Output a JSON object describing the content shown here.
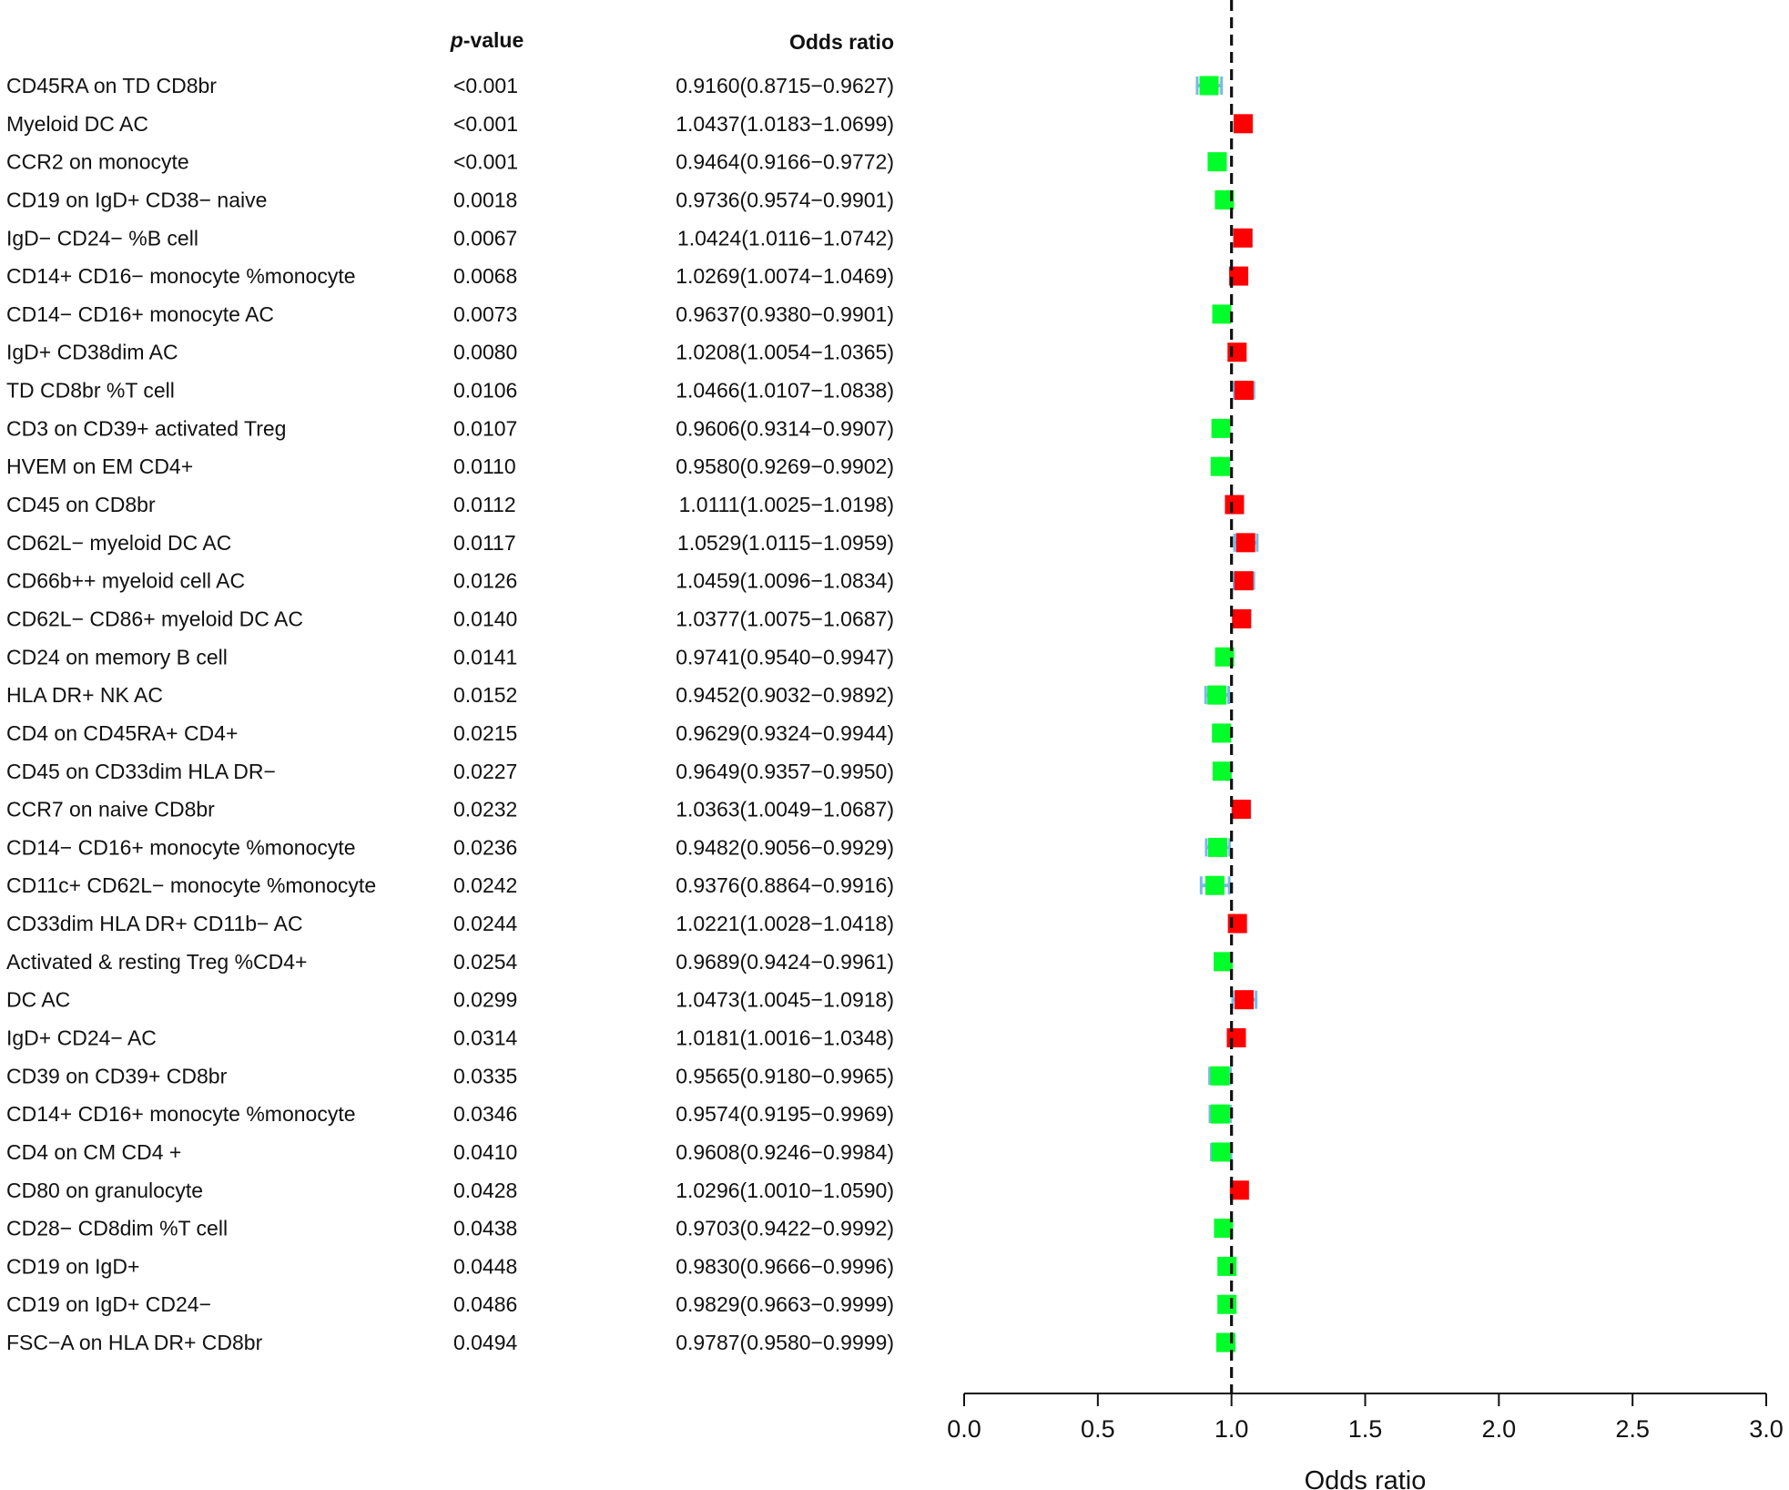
{
  "headers": {
    "pvalue_prefix": "p",
    "pvalue_suffix": "-value",
    "or": "Odds ratio"
  },
  "colors": {
    "protective": "#00ff2a",
    "risk": "#ff0000",
    "ci": "#7cb8e6",
    "refline": "#111111"
  },
  "chart_data": {
    "type": "forest",
    "xlabel": "Odds ratio",
    "xlim": [
      0.0,
      3.0
    ],
    "xticks": [
      "0.0",
      "0.5",
      "1.0",
      "1.5",
      "2.0",
      "2.5",
      "3.0"
    ],
    "reference_line": 1.0,
    "rows": [
      {
        "label": "CD45RA on TD CD8br",
        "p": "<0.001",
        "or": 0.916,
        "lo": 0.8715,
        "hi": 0.9627,
        "or_text": "0.9160(0.8715−0.9627)"
      },
      {
        "label": "Myeloid DC AC",
        "p": "<0.001",
        "or": 1.0437,
        "lo": 1.0183,
        "hi": 1.0699,
        "or_text": "1.0437(1.0183−1.0699)"
      },
      {
        "label": "CCR2 on monocyte",
        "p": "<0.001",
        "or": 0.9464,
        "lo": 0.9166,
        "hi": 0.9772,
        "or_text": "0.9464(0.9166−0.9772)"
      },
      {
        "label": "CD19 on IgD+ CD38− naive",
        "p": "0.0018",
        "or": 0.9736,
        "lo": 0.9574,
        "hi": 0.9901,
        "or_text": "0.9736(0.9574−0.9901)"
      },
      {
        "label": "IgD− CD24− %B cell",
        "p": "0.0067",
        "or": 1.0424,
        "lo": 1.0116,
        "hi": 1.0742,
        "or_text": "1.0424(1.0116−1.0742)"
      },
      {
        "label": "CD14+ CD16− monocyte %monocyte",
        "p": "0.0068",
        "or": 1.0269,
        "lo": 1.0074,
        "hi": 1.0469,
        "or_text": "1.0269(1.0074−1.0469)"
      },
      {
        "label": "CD14− CD16+ monocyte AC",
        "p": "0.0073",
        "or": 0.9637,
        "lo": 0.938,
        "hi": 0.9901,
        "or_text": "0.9637(0.9380−0.9901)"
      },
      {
        "label": "IgD+ CD38dim AC",
        "p": "0.0080",
        "or": 1.0208,
        "lo": 1.0054,
        "hi": 1.0365,
        "or_text": "1.0208(1.0054−1.0365)"
      },
      {
        "label": "TD CD8br %T cell",
        "p": "0.0106",
        "or": 1.0466,
        "lo": 1.0107,
        "hi": 1.0838,
        "or_text": "1.0466(1.0107−1.0838)"
      },
      {
        "label": "CD3 on CD39+ activated Treg",
        "p": "0.0107",
        "or": 0.9606,
        "lo": 0.9314,
        "hi": 0.9907,
        "or_text": "0.9606(0.9314−0.9907)"
      },
      {
        "label": "HVEM on EM CD4+",
        "p": "0.0110",
        "or": 0.958,
        "lo": 0.9269,
        "hi": 0.9902,
        "or_text": "0.9580(0.9269−0.9902)"
      },
      {
        "label": "CD45 on CD8br",
        "p": "0.0112",
        "or": 1.0111,
        "lo": 1.0025,
        "hi": 1.0198,
        "or_text": "1.0111(1.0025−1.0198)"
      },
      {
        "label": "CD62L− myeloid DC AC",
        "p": "0.0117",
        "or": 1.0529,
        "lo": 1.0115,
        "hi": 1.0959,
        "or_text": "1.0529(1.0115−1.0959)"
      },
      {
        "label": "CD66b++ myeloid cell AC",
        "p": "0.0126",
        "or": 1.0459,
        "lo": 1.0096,
        "hi": 1.0834,
        "or_text": "1.0459(1.0096−1.0834)"
      },
      {
        "label": "CD62L− CD86+ myeloid DC AC",
        "p": "0.0140",
        "or": 1.0377,
        "lo": 1.0075,
        "hi": 1.0687,
        "or_text": "1.0377(1.0075−1.0687)"
      },
      {
        "label": "CD24 on memory B cell",
        "p": "0.0141",
        "or": 0.9741,
        "lo": 0.954,
        "hi": 0.9947,
        "or_text": "0.9741(0.9540−0.9947)"
      },
      {
        "label": "HLA DR+ NK AC",
        "p": "0.0152",
        "or": 0.9452,
        "lo": 0.9032,
        "hi": 0.9892,
        "or_text": "0.9452(0.9032−0.9892)"
      },
      {
        "label": "CD4 on CD45RA+ CD4+",
        "p": "0.0215",
        "or": 0.9629,
        "lo": 0.9324,
        "hi": 0.9944,
        "or_text": "0.9629(0.9324−0.9944)"
      },
      {
        "label": "CD45 on CD33dim HLA DR−",
        "p": "0.0227",
        "or": 0.9649,
        "lo": 0.9357,
        "hi": 0.995,
        "or_text": "0.9649(0.9357−0.9950)"
      },
      {
        "label": "CCR7 on naive CD8br",
        "p": "0.0232",
        "or": 1.0363,
        "lo": 1.0049,
        "hi": 1.0687,
        "or_text": "1.0363(1.0049−1.0687)"
      },
      {
        "label": "CD14− CD16+ monocyte %monocyte",
        "p": "0.0236",
        "or": 0.9482,
        "lo": 0.9056,
        "hi": 0.9929,
        "or_text": "0.9482(0.9056−0.9929)"
      },
      {
        "label": "CD11c+ CD62L− monocyte %monocyte",
        "p": "0.0242",
        "or": 0.9376,
        "lo": 0.8864,
        "hi": 0.9916,
        "or_text": "0.9376(0.8864−0.9916)"
      },
      {
        "label": "CD33dim HLA DR+ CD11b− AC",
        "p": "0.0244",
        "or": 1.0221,
        "lo": 1.0028,
        "hi": 1.0418,
        "or_text": "1.0221(1.0028−1.0418)"
      },
      {
        "label": "Activated & resting Treg %CD4+",
        "p": "0.0254",
        "or": 0.9689,
        "lo": 0.9424,
        "hi": 0.9961,
        "or_text": "0.9689(0.9424−0.9961)"
      },
      {
        "label": "DC AC",
        "p": "0.0299",
        "or": 1.0473,
        "lo": 1.0045,
        "hi": 1.0918,
        "or_text": "1.0473(1.0045−1.0918)"
      },
      {
        "label": "IgD+ CD24− AC",
        "p": "0.0314",
        "or": 1.0181,
        "lo": 1.0016,
        "hi": 1.0348,
        "or_text": "1.0181(1.0016−1.0348)"
      },
      {
        "label": "CD39 on CD39+ CD8br",
        "p": "0.0335",
        "or": 0.9565,
        "lo": 0.918,
        "hi": 0.9965,
        "or_text": "0.9565(0.9180−0.9965)"
      },
      {
        "label": "CD14+ CD16+ monocyte %monocyte",
        "p": "0.0346",
        "or": 0.9574,
        "lo": 0.9195,
        "hi": 0.9969,
        "or_text": "0.9574(0.9195−0.9969)"
      },
      {
        "label": "CD4 on CM CD4 +",
        "p": "0.0410",
        "or": 0.9608,
        "lo": 0.9246,
        "hi": 0.9984,
        "or_text": "0.9608(0.9246−0.9984)"
      },
      {
        "label": "CD80 on granulocyte",
        "p": "0.0428",
        "or": 1.0296,
        "lo": 1.001,
        "hi": 1.059,
        "or_text": "1.0296(1.0010−1.0590)"
      },
      {
        "label": "CD28− CD8dim %T cell",
        "p": "0.0438",
        "or": 0.9703,
        "lo": 0.9422,
        "hi": 0.9992,
        "or_text": "0.9703(0.9422−0.9992)"
      },
      {
        "label": "CD19 on IgD+",
        "p": "0.0448",
        "or": 0.983,
        "lo": 0.9666,
        "hi": 0.9996,
        "or_text": "0.9830(0.9666−0.9996)"
      },
      {
        "label": "CD19 on IgD+ CD24−",
        "p": "0.0486",
        "or": 0.9829,
        "lo": 0.9663,
        "hi": 0.9999,
        "or_text": "0.9829(0.9663−0.9999)"
      },
      {
        "label": "FSC−A on HLA DR+ CD8br",
        "p": "0.0494",
        "or": 0.9787,
        "lo": 0.958,
        "hi": 0.9999,
        "or_text": "0.9787(0.9580−0.9999)"
      }
    ]
  }
}
